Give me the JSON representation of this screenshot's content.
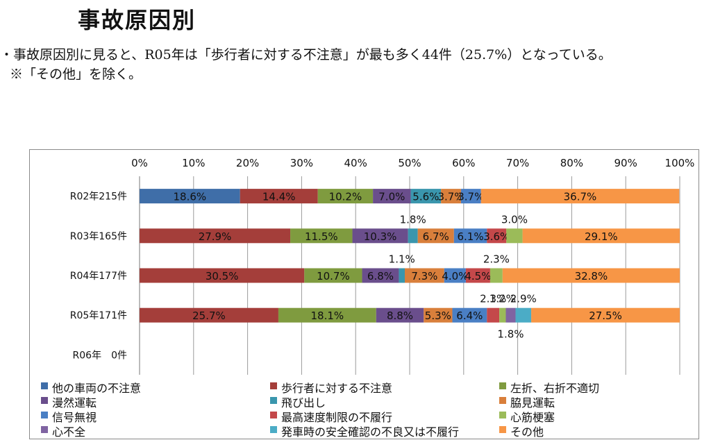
{
  "page": {
    "title": "事故原因別",
    "note_line1": "・事故原因別に見ると、R05年は「歩行者に対する不注意」が最も多く44件（25.7%）となっている。",
    "note_line2": "※「その他」を除く。"
  },
  "chart_data": {
    "type": "bar",
    "orientation": "horizontal-stacked-100",
    "categories": [
      "R02年215件",
      "R03年165件",
      "R04年177件",
      "R05年171件",
      "R06年　0件"
    ],
    "x_ticks": [
      "0%",
      "10%",
      "20%",
      "30%",
      "40%",
      "50%",
      "60%",
      "70%",
      "80%",
      "90%",
      "100%"
    ],
    "xlim": [
      0,
      100
    ],
    "grid": true,
    "legend_position": "bottom",
    "series": [
      {
        "name": "他の車両の不注意",
        "color": "#3F6EA8",
        "values": [
          18.6,
          0,
          0,
          0,
          0
        ],
        "labels": [
          "18.6%",
          null,
          null,
          null,
          null
        ]
      },
      {
        "name": "歩行者に対する不注意",
        "color": "#A43E3A",
        "values": [
          14.4,
          27.9,
          30.5,
          25.7,
          0
        ],
        "labels": [
          "14.4%",
          "27.9%",
          "30.5%",
          "25.7%",
          null
        ]
      },
      {
        "name": "左折、右折不適切",
        "color": "#7F9B3F",
        "values": [
          10.2,
          11.5,
          10.7,
          18.1,
          0
        ],
        "labels": [
          "10.2%",
          "11.5%",
          "10.7%",
          "18.1%",
          null
        ]
      },
      {
        "name": "漫然運転",
        "color": "#6A4E8C",
        "values": [
          7.0,
          10.3,
          6.8,
          8.8,
          0
        ],
        "labels": [
          "7.0%",
          "10.3%",
          "6.8%",
          "8.8%",
          null
        ]
      },
      {
        "name": "飛び出し",
        "color": "#3A96AD",
        "values": [
          5.6,
          1.8,
          1.1,
          0,
          0
        ],
        "labels": [
          "5.6%",
          "1.8%",
          "1.1%",
          null,
          null
        ]
      },
      {
        "name": "脇見運転",
        "color": "#D97F3B",
        "values": [
          3.7,
          6.7,
          7.3,
          5.3,
          0
        ],
        "labels": [
          "3.7%",
          "6.7%",
          "7.3%",
          "5.3%",
          null
        ]
      },
      {
        "name": "信号無視",
        "color": "#4A7FC4",
        "values": [
          3.7,
          6.1,
          4.0,
          6.4,
          0
        ],
        "labels": [
          "3.7%",
          "6.1%",
          "4.0%",
          "6.4%",
          null
        ]
      },
      {
        "name": "最高速度制限の不履行",
        "color": "#C4484A",
        "values": [
          0,
          3.6,
          4.5,
          2.3,
          0
        ],
        "labels": [
          null,
          "3.6%",
          "4.5%",
          "2.3%",
          null
        ]
      },
      {
        "name": "心筋梗塞",
        "color": "#9BBB59",
        "values": [
          0,
          3.0,
          2.3,
          1.2,
          0
        ],
        "labels": [
          null,
          "3.0%",
          "2.3%",
          "1.2%",
          null
        ]
      },
      {
        "name": "心不全",
        "color": "#8064A2",
        "values": [
          0,
          0,
          0,
          1.8,
          0
        ],
        "labels": [
          null,
          null,
          null,
          "1.8%",
          null
        ]
      },
      {
        "name": "発車時の安全確認の不良又は不履行",
        "color": "#4BACC6",
        "values": [
          0,
          0,
          0,
          2.9,
          0
        ],
        "labels": [
          null,
          null,
          null,
          "2.9%",
          null
        ]
      },
      {
        "name": "その他",
        "color": "#F79646",
        "values": [
          36.7,
          29.1,
          32.8,
          27.5,
          0
        ],
        "labels": [
          "36.7%",
          "29.1%",
          "32.8%",
          "27.5%",
          null
        ]
      }
    ]
  }
}
